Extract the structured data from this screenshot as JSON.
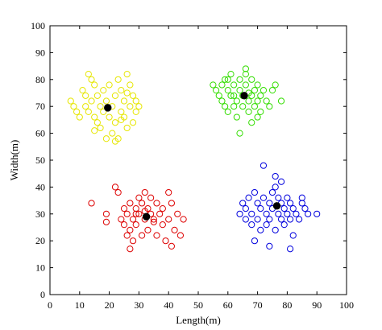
{
  "chart_data": {
    "type": "scatter",
    "title": "",
    "xlabel": "Length(m)",
    "ylabel": "Width(m)",
    "xlim": [
      0,
      100
    ],
    "ylim": [
      0,
      100
    ],
    "xticks": [
      0,
      10,
      20,
      30,
      40,
      50,
      60,
      70,
      80,
      90,
      100
    ],
    "yticks": [
      0,
      10,
      20,
      30,
      40,
      50,
      60,
      70,
      80,
      90,
      100
    ],
    "grid": false,
    "legend": "none",
    "series": [
      {
        "color": "#e6e600",
        "marker": "open-circle",
        "points": [
          [
            7,
            72
          ],
          [
            8,
            70
          ],
          [
            9,
            68
          ],
          [
            10,
            66
          ],
          [
            11,
            76
          ],
          [
            12,
            74
          ],
          [
            12,
            70
          ],
          [
            13,
            68
          ],
          [
            13,
            82
          ],
          [
            14,
            80
          ],
          [
            14,
            72
          ],
          [
            15,
            78
          ],
          [
            15,
            66
          ],
          [
            16,
            64
          ],
          [
            16,
            74
          ],
          [
            17,
            70
          ],
          [
            17,
            62
          ],
          [
            18,
            76
          ],
          [
            18,
            68
          ],
          [
            19,
            58
          ],
          [
            19,
            72
          ],
          [
            20,
            66
          ],
          [
            20,
            78
          ],
          [
            21,
            60
          ],
          [
            21,
            70
          ],
          [
            22,
            74
          ],
          [
            22,
            64
          ],
          [
            23,
            80
          ],
          [
            23,
            58
          ],
          [
            24,
            68
          ],
          [
            24,
            76
          ],
          [
            25,
            72
          ],
          [
            25,
            66
          ],
          [
            26,
            82
          ],
          [
            26,
            62
          ],
          [
            27,
            70
          ],
          [
            27,
            78
          ],
          [
            28,
            74
          ],
          [
            28,
            64
          ],
          [
            29,
            68
          ],
          [
            29,
            72
          ],
          [
            30,
            70
          ],
          [
            15,
            61
          ],
          [
            22,
            57
          ],
          [
            24,
            65
          ],
          [
            26,
            75
          ]
        ]
      },
      {
        "color": "#33dd00",
        "marker": "open-circle",
        "points": [
          [
            55,
            78
          ],
          [
            56,
            76
          ],
          [
            57,
            74
          ],
          [
            58,
            72
          ],
          [
            59,
            80
          ],
          [
            59,
            70
          ],
          [
            60,
            76
          ],
          [
            60,
            68
          ],
          [
            61,
            82
          ],
          [
            61,
            74
          ],
          [
            62,
            78
          ],
          [
            62,
            70
          ],
          [
            63,
            72
          ],
          [
            63,
            66
          ],
          [
            64,
            80
          ],
          [
            64,
            76
          ],
          [
            65,
            74
          ],
          [
            65,
            70
          ],
          [
            66,
            82
          ],
          [
            66,
            78
          ],
          [
            67,
            72
          ],
          [
            67,
            68
          ],
          [
            68,
            80
          ],
          [
            68,
            74
          ],
          [
            69,
            76
          ],
          [
            69,
            70
          ],
          [
            70,
            72
          ],
          [
            70,
            78
          ],
          [
            71,
            74
          ],
          [
            71,
            68
          ],
          [
            72,
            76
          ],
          [
            73,
            72
          ],
          [
            74,
            70
          ],
          [
            75,
            76
          ],
          [
            76,
            78
          ],
          [
            78,
            72
          ],
          [
            64,
            60
          ],
          [
            68,
            64
          ],
          [
            70,
            66
          ],
          [
            66,
            84
          ],
          [
            62,
            74
          ],
          [
            58,
            78
          ],
          [
            60,
            80
          ],
          [
            67,
            75
          ]
        ]
      },
      {
        "color": "#dd0000",
        "marker": "open-circle",
        "points": [
          [
            14,
            34
          ],
          [
            19,
            30
          ],
          [
            19,
            27
          ],
          [
            22,
            40
          ],
          [
            23,
            38
          ],
          [
            24,
            28
          ],
          [
            25,
            32
          ],
          [
            25,
            26
          ],
          [
            26,
            30
          ],
          [
            26,
            22
          ],
          [
            27,
            34
          ],
          [
            27,
            24
          ],
          [
            28,
            28
          ],
          [
            28,
            20
          ],
          [
            29,
            32
          ],
          [
            29,
            26
          ],
          [
            30,
            30
          ],
          [
            30,
            36
          ],
          [
            31,
            34
          ],
          [
            31,
            22
          ],
          [
            32,
            28
          ],
          [
            32,
            38
          ],
          [
            33,
            32
          ],
          [
            33,
            24
          ],
          [
            34,
            30
          ],
          [
            34,
            36
          ],
          [
            35,
            28
          ],
          [
            36,
            34
          ],
          [
            36,
            22
          ],
          [
            37,
            30
          ],
          [
            38,
            26
          ],
          [
            38,
            32
          ],
          [
            39,
            20
          ],
          [
            40,
            28
          ],
          [
            40,
            38
          ],
          [
            41,
            34
          ],
          [
            42,
            24
          ],
          [
            43,
            30
          ],
          [
            44,
            22
          ],
          [
            45,
            28
          ],
          [
            41,
            18
          ],
          [
            27,
            17
          ],
          [
            29,
            30
          ],
          [
            32,
            31
          ],
          [
            35,
            27
          ]
        ]
      },
      {
        "color": "#0000dd",
        "marker": "open-circle",
        "points": [
          [
            64,
            30
          ],
          [
            65,
            34
          ],
          [
            66,
            32
          ],
          [
            66,
            28
          ],
          [
            67,
            36
          ],
          [
            68,
            30
          ],
          [
            68,
            26
          ],
          [
            69,
            38
          ],
          [
            69,
            20
          ],
          [
            70,
            34
          ],
          [
            70,
            28
          ],
          [
            71,
            32
          ],
          [
            71,
            24
          ],
          [
            72,
            48
          ],
          [
            72,
            36
          ],
          [
            73,
            30
          ],
          [
            73,
            26
          ],
          [
            74,
            34
          ],
          [
            74,
            28
          ],
          [
            75,
            38
          ],
          [
            75,
            32
          ],
          [
            76,
            44
          ],
          [
            76,
            24
          ],
          [
            77,
            36
          ],
          [
            77,
            30
          ],
          [
            78,
            28
          ],
          [
            78,
            34
          ],
          [
            79,
            32
          ],
          [
            79,
            26
          ],
          [
            80,
            36
          ],
          [
            80,
            30
          ],
          [
            81,
            34
          ],
          [
            81,
            28
          ],
          [
            82,
            32
          ],
          [
            82,
            22
          ],
          [
            83,
            30
          ],
          [
            84,
            28
          ],
          [
            85,
            36
          ],
          [
            85,
            34
          ],
          [
            86,
            32
          ],
          [
            87,
            30
          ],
          [
            90,
            30
          ],
          [
            81,
            17
          ],
          [
            74,
            18
          ],
          [
            76,
            40
          ],
          [
            78,
            42
          ]
        ]
      }
    ],
    "centroids": {
      "color": "#000000",
      "marker": "filled-circle",
      "points": [
        [
          19.5,
          69.5
        ],
        [
          65.5,
          74
        ],
        [
          32.5,
          29
        ],
        [
          76.5,
          33
        ]
      ]
    }
  }
}
